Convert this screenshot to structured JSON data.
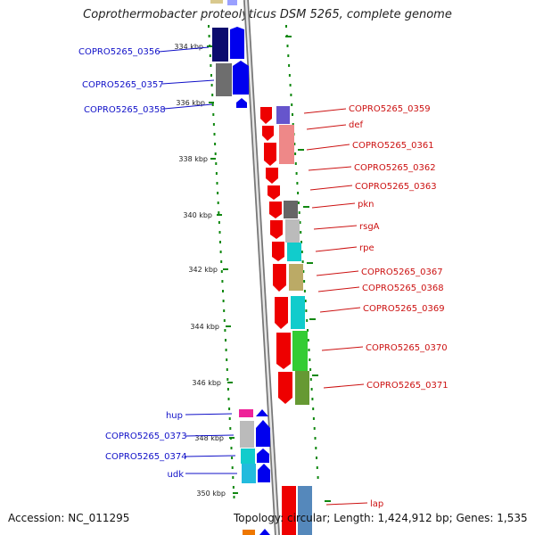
{
  "title": "Coprothermobacter proteolyticus DSM 5265, complete genome",
  "footer": {
    "accession": "Accession: NC_011295",
    "topology": "Topology: circular; Length: 1,424,912 bp; Genes: 1,535"
  },
  "ruler": [
    "334 kbp",
    "336 kbp",
    "338 kbp",
    "340 kbp",
    "342 kbp",
    "344 kbp",
    "346 kbp",
    "348 kbp",
    "350 kbp"
  ],
  "left_genes": [
    "COPRO5265_0356",
    "COPRO5265_0357",
    "COPRO5265_0358",
    "hup",
    "COPRO5265_0373",
    "COPRO5265_0374",
    "udk"
  ],
  "right_genes": [
    "COPRO5265_0359",
    "def",
    "COPRO5265_0361",
    "COPRO5265_0362",
    "COPRO5265_0363",
    "pkn",
    "rsgA",
    "rpe",
    "COPRO5265_0367",
    "COPRO5265_0368",
    "COPRO5265_0369",
    "COPRO5265_0370",
    "COPRO5265_0371",
    "lap"
  ],
  "colors": {
    "forward_strand": "#ff0000",
    "reverse_strand": "#0000ff",
    "backbone": "#9a9a9a",
    "ruler_dots": "#118811",
    "left_label": "#1010c8",
    "right_label": "#cc1111"
  }
}
